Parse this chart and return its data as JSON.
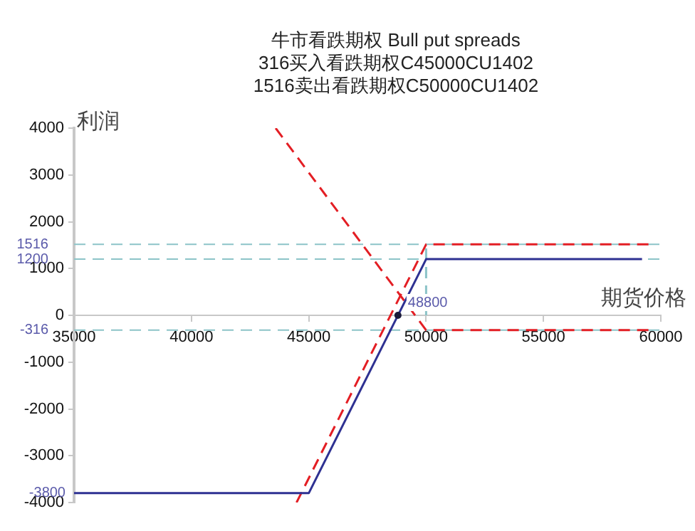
{
  "chart_data": {
    "type": "line",
    "title": "牛市看跌期权 Bull put spreads",
    "subtitle": "316买入看跌期权C45000CU1402\n1516卖出看跌期权C50000CU1402",
    "xlabel": "期货价格",
    "ylabel": "利润",
    "xlim": [
      35000,
      60000
    ],
    "xticks": [
      35000,
      40000,
      45000,
      50000,
      55000,
      60000
    ],
    "ylim": [
      -4000,
      4000
    ],
    "yticks": [
      -4000,
      -3000,
      -2000,
      -1000,
      0,
      1000,
      2000,
      3000,
      4000
    ],
    "grid": false,
    "legend": false,
    "marker": "none",
    "series": [
      {
        "color": "#2e3192",
        "line_style": "solid",
        "x": [
          35000,
          45000,
          50000,
          59200
        ],
        "values": [
          -3800,
          -3800,
          1200,
          1200
        ]
      },
      {
        "color": "#e31e24",
        "line_style": "dashed",
        "x": [
          44480,
          50000,
          59500
        ],
        "values": [
          -4000,
          1516,
          1516
        ]
      },
      {
        "color": "#e31e24",
        "line_style": "dashed",
        "x": [
          43590,
          50000,
          59500
        ],
        "values": [
          4000,
          -316,
          -316
        ]
      },
      {
        "color": "#8cc4c8",
        "line_style": "dashed",
        "x": [
          50000,
          50000
        ],
        "values": [
          0,
          1516
        ]
      }
    ],
    "ref_lines": [
      {
        "axis": "y",
        "value": 1516,
        "label": "1516",
        "color": "#8cc4c8",
        "line_style": "dashed"
      },
      {
        "axis": "y",
        "value": 1200,
        "label": "1200",
        "color": "#8cc4c8",
        "line_style": "dashed"
      },
      {
        "axis": "y",
        "value": -316,
        "label": "-316",
        "color": "#8cc4c8",
        "line_style": "dashed"
      }
    ],
    "annotations": [
      {
        "text": "-3800",
        "x": 35000,
        "y": -3800
      },
      {
        "text": "48800",
        "x": 48800,
        "y": 0
      }
    ]
  }
}
